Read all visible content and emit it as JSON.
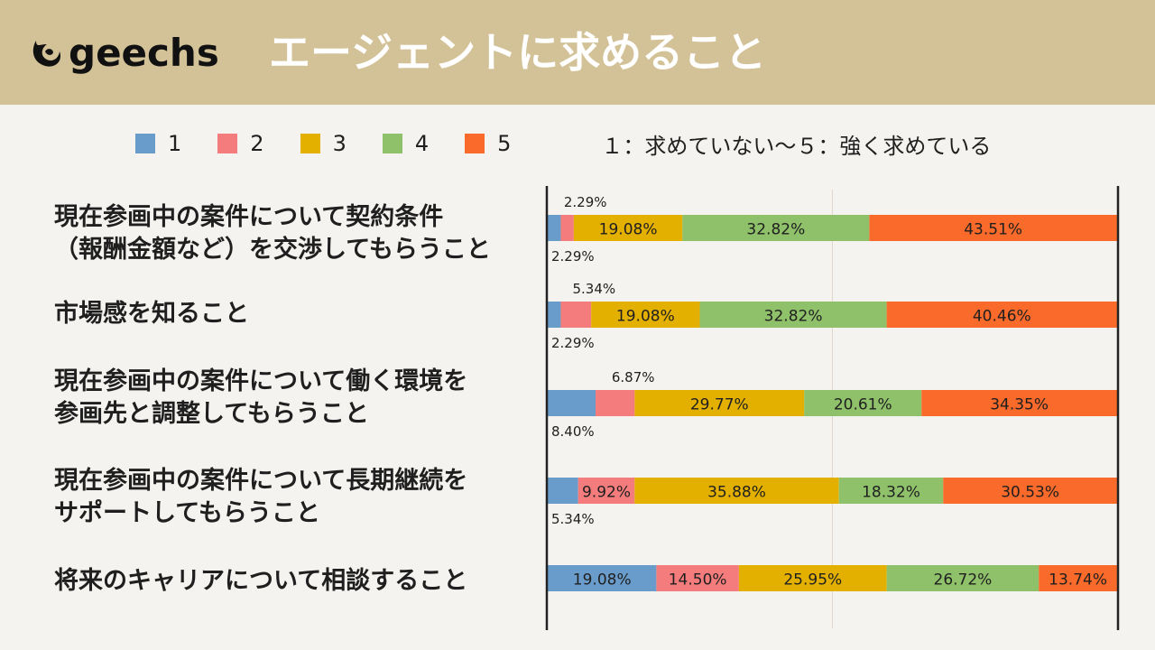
{
  "header": {
    "logo_text": "geechs",
    "title": "エージェントに求めること",
    "background": "#d3c297"
  },
  "legend": {
    "items": [
      {
        "label": "1",
        "color": "#6a9ccb"
      },
      {
        "label": "2",
        "color": "#f47c7c"
      },
      {
        "label": "3",
        "color": "#e4b000"
      },
      {
        "label": "4",
        "color": "#8fc06a"
      },
      {
        "label": "5",
        "color": "#fa6a2a"
      }
    ],
    "note": "１：求めていない～５：強く求めている"
  },
  "chart_data": {
    "type": "bar",
    "orientation": "horizontal",
    "stacked": true,
    "percent": true,
    "title": "エージェントに求めること",
    "xlim": [
      0,
      100
    ],
    "categories": [
      "現在参画中の案件について契約条件\n（報酬金額など）を交渉してもらうこと",
      "市場感を知ること",
      "現在参画中の案件について働く環境を\n参画先と調整してもらうこと",
      "現在参画中の案件について長期継続を\nサポートしてもらうこと",
      "将来のキャリアについて相談すること"
    ],
    "series": [
      {
        "name": "1",
        "color": "#6a9ccb",
        "values": [
          2.29,
          2.29,
          8.4,
          5.34,
          19.08
        ],
        "labels": [
          "2.29%",
          "2.29%",
          "8.40%",
          "5.34%",
          "19.08%"
        ]
      },
      {
        "name": "2",
        "color": "#f47c7c",
        "values": [
          2.29,
          5.34,
          6.87,
          9.92,
          14.5
        ],
        "labels": [
          "2.29%",
          "5.34%",
          "6.87%",
          "9.92%",
          "14.50%"
        ]
      },
      {
        "name": "3",
        "color": "#e4b000",
        "values": [
          19.08,
          19.08,
          29.77,
          35.88,
          25.95
        ],
        "labels": [
          "19.08%",
          "19.08%",
          "29.77%",
          "35.88%",
          "25.95%"
        ]
      },
      {
        "name": "4",
        "color": "#8fc06a",
        "values": [
          32.82,
          32.82,
          20.61,
          18.32,
          26.72
        ],
        "labels": [
          "32.82%",
          "32.82%",
          "20.61%",
          "18.32%",
          "26.72%"
        ]
      },
      {
        "name": "5",
        "color": "#fa6a2a",
        "values": [
          43.51,
          40.46,
          34.35,
          30.53,
          13.74
        ],
        "labels": [
          "43.51%",
          "40.46%",
          "34.35%",
          "30.53%",
          "13.74%"
        ]
      }
    ]
  }
}
